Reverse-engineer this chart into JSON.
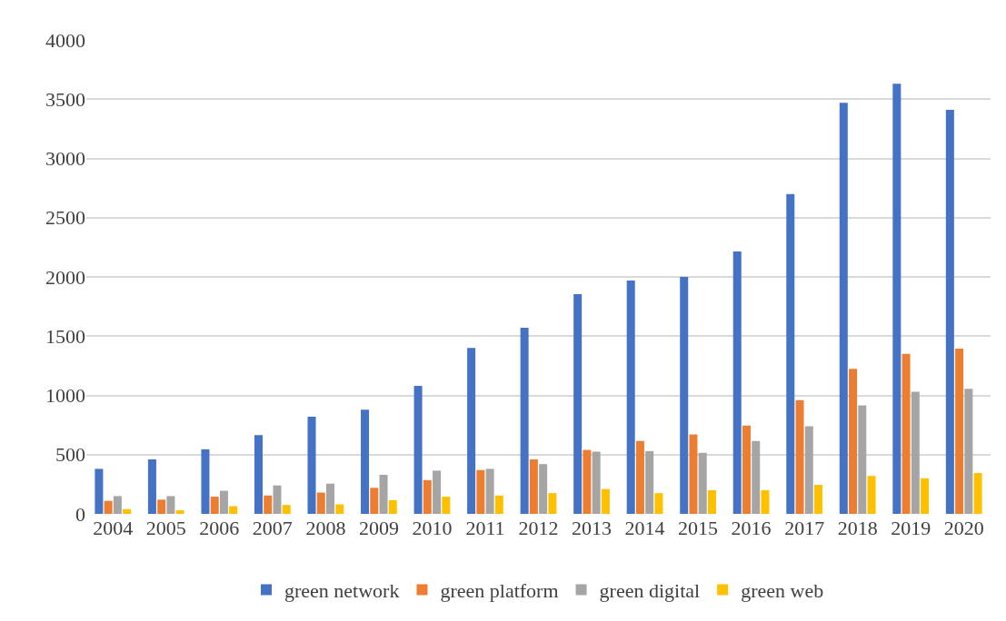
{
  "chart_data": {
    "type": "bar",
    "categories": [
      "2004",
      "2005",
      "2006",
      "2007",
      "2008",
      "2009",
      "2010",
      "2011",
      "2012",
      "2013",
      "2014",
      "2015",
      "2016",
      "2017",
      "2018",
      "2019",
      "2020"
    ],
    "series": [
      {
        "name": "green network",
        "color": "#4472c4",
        "values": [
          380,
          460,
          545,
          665,
          820,
          880,
          1080,
          1400,
          1570,
          1855,
          1970,
          2000,
          2215,
          2700,
          3470,
          3630,
          3410
        ]
      },
      {
        "name": "green platform",
        "color": "#ed7d31",
        "values": [
          110,
          120,
          145,
          155,
          180,
          220,
          285,
          370,
          460,
          540,
          615,
          670,
          745,
          960,
          1225,
          1350,
          1395
        ]
      },
      {
        "name": "green digital",
        "color": "#a5a5a5",
        "values": [
          150,
          150,
          195,
          240,
          255,
          330,
          365,
          380,
          420,
          525,
          530,
          515,
          615,
          740,
          915,
          1030,
          1055
        ]
      },
      {
        "name": "green web",
        "color": "#ffc000",
        "values": [
          40,
          30,
          65,
          75,
          80,
          115,
          145,
          155,
          175,
          210,
          175,
          200,
          200,
          245,
          320,
          300,
          345
        ]
      }
    ],
    "ylim": [
      0,
      4000
    ],
    "yticks": [
      0,
      500,
      1000,
      1500,
      2000,
      2500,
      3000,
      3500,
      4000
    ],
    "grid": "y",
    "legend": "bottom"
  }
}
